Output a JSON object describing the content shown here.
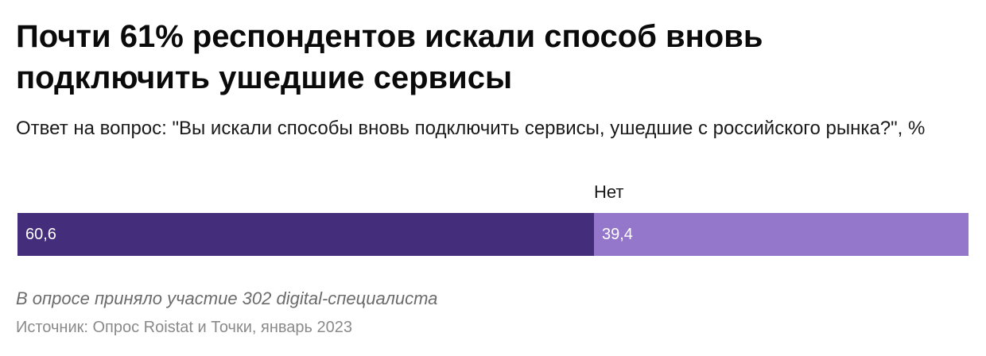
{
  "header": {
    "title": "Почти 61% респондентов искали способ вновь подключить ушедшие сервисы",
    "subtitle": "Ответ на вопрос: \"Вы искали способы вновь подключить сервисы, ушедшие с российского рынка?\", %"
  },
  "chart_data": {
    "type": "bar",
    "orientation": "horizontal",
    "stacked": true,
    "xlim": [
      0,
      100
    ],
    "series": [
      {
        "name": "",
        "value": 60.6,
        "value_label": "60,6",
        "color": "#442d7a"
      },
      {
        "name": "Нет",
        "value": 39.4,
        "value_label": "39,4",
        "color": "#9477ca"
      }
    ]
  },
  "footer": {
    "note": "В опросе приняло участие 302 digital-специалиста",
    "source": "Источник: Опрос Roistat и Точки, январь 2023"
  }
}
